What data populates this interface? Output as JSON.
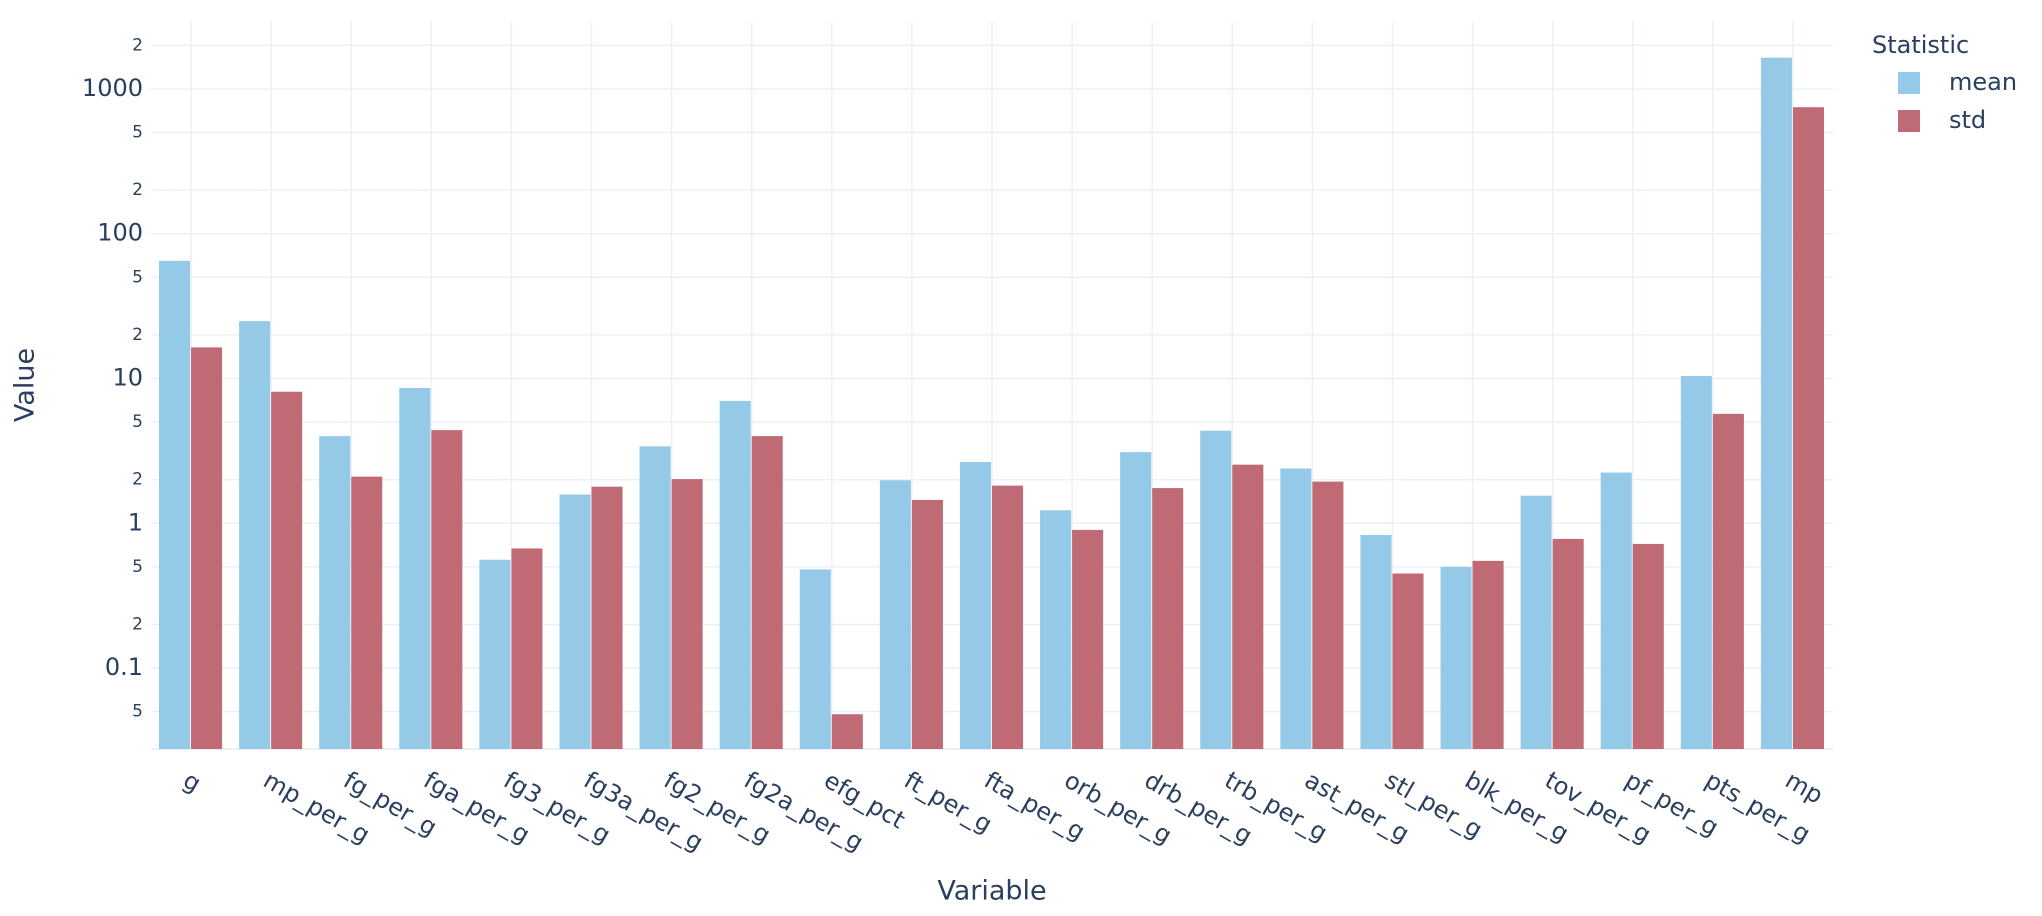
{
  "chart_data": {
    "type": "bar",
    "x_label": "Variable",
    "y_label": "Value",
    "legend_title": "Statistic",
    "categories": [
      "g",
      "mp_per_g",
      "fg_per_g",
      "fga_per_g",
      "fg3_per_g",
      "fg3a_per_g",
      "fg2_per_g",
      "fg2a_per_g",
      "efg_pct",
      "ft_per_g",
      "fta_per_g",
      "orb_per_g",
      "drb_per_g",
      "trb_per_g",
      "ast_per_g",
      "stl_per_g",
      "blk_per_g",
      "tov_per_g",
      "pf_per_g",
      "pts_per_g",
      "mp"
    ],
    "series": [
      {
        "name": "mean",
        "color": "#94cae8",
        "values": [
          65,
          24.9,
          4.0,
          8.6,
          0.56,
          1.58,
          3.4,
          7.0,
          0.48,
          1.98,
          2.65,
          1.23,
          3.1,
          4.36,
          2.39,
          0.83,
          0.5,
          1.55,
          2.24,
          10.4,
          1645
        ]
      },
      {
        "name": "std",
        "color": "#bf6a75",
        "values": [
          16.4,
          8.1,
          2.1,
          4.4,
          0.67,
          1.79,
          2.02,
          4.0,
          0.048,
          1.45,
          1.82,
          0.9,
          1.75,
          2.54,
          1.94,
          0.45,
          0.55,
          0.78,
          0.72,
          5.7,
          748
        ]
      }
    ],
    "log_y": true,
    "ylim": [
      0.0276,
      2900
    ],
    "yticks": [
      {
        "value": 0.05,
        "label": "5"
      },
      0.1,
      {
        "value": 0.2,
        "label": "2"
      },
      {
        "value": 0.5,
        "label": "5"
      },
      1,
      {
        "value": 2,
        "label": "2"
      },
      {
        "value": 5,
        "label": "5"
      },
      10,
      {
        "value": 20,
        "label": "2"
      },
      {
        "value": 50,
        "label": "5"
      },
      100,
      {
        "value": 200,
        "label": "2"
      },
      {
        "value": 500,
        "label": "5"
      },
      1000,
      {
        "value": 2000,
        "label": "2"
      }
    ],
    "grid": true,
    "legend_position": "right"
  }
}
